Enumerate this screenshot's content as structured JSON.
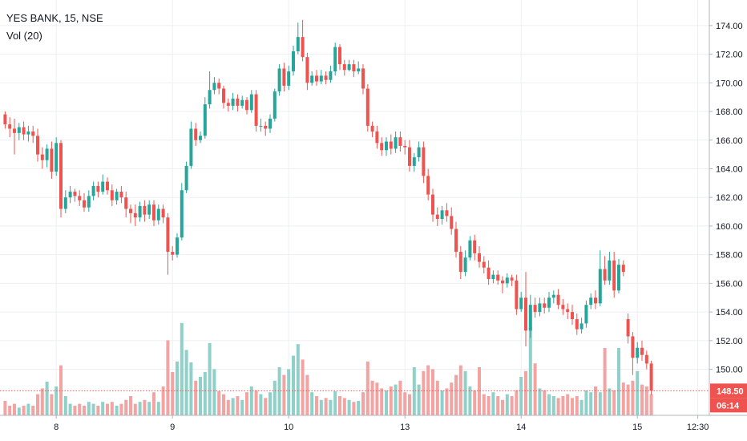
{
  "header": {
    "symbol": "YES BANK, 15, NSE",
    "indicator": "Vol (20)"
  },
  "colors": {
    "up": "#26a69a",
    "down": "#ef5350",
    "up_vol": "#8fd0c8",
    "down_vol": "#f4a3a3",
    "grid": "#edeff3",
    "axis": "#b2b5be",
    "price_line": "#ef5350"
  },
  "price_badge": {
    "price": "148.50",
    "countdown": "06:14",
    "color": "#ef5350"
  },
  "chart_data": {
    "type": "candlestick",
    "y_range": [
      146,
      175
    ],
    "y_ticks": [
      "174.00",
      "172.00",
      "170.00",
      "168.00",
      "166.00",
      "164.00",
      "162.00",
      "160.00",
      "158.00",
      "156.00",
      "154.00",
      "152.00",
      "150.00"
    ],
    "x_labels": [
      {
        "label": "8",
        "bar": 11
      },
      {
        "label": "9",
        "bar": 36
      },
      {
        "label": "10",
        "bar": 61
      },
      {
        "label": "13",
        "bar": 86
      },
      {
        "label": "14",
        "bar": 111
      },
      {
        "label": "15",
        "bar": 136
      },
      {
        "label": "12:30",
        "bar": 149
      }
    ],
    "last_price": 148.5,
    "candles": [
      [
        167.8,
        167.1,
        168.0,
        166.8
      ],
      [
        167.1,
        166.8,
        167.6,
        166.2
      ],
      [
        166.8,
        166.5,
        167.5,
        165.0
      ],
      [
        166.5,
        166.9,
        167.2,
        166.0
      ],
      [
        166.9,
        166.4,
        167.3,
        166.0
      ],
      [
        166.4,
        166.6,
        167.0,
        165.9
      ],
      [
        166.6,
        166.3,
        167.0,
        165.8
      ],
      [
        166.3,
        165.0,
        166.8,
        164.5
      ],
      [
        165.0,
        164.6,
        165.5,
        164.0
      ],
      [
        164.6,
        165.4,
        165.7,
        164.1
      ],
      [
        165.4,
        163.8,
        165.9,
        163.3
      ],
      [
        163.8,
        165.8,
        166.2,
        163.5
      ],
      [
        165.8,
        161.2,
        166.0,
        160.6
      ],
      [
        161.2,
        162.0,
        162.5,
        160.9
      ],
      [
        162.0,
        162.4,
        162.8,
        161.6
      ],
      [
        162.4,
        162.1,
        162.6,
        161.7
      ],
      [
        162.1,
        161.8,
        162.5,
        161.4
      ],
      [
        161.8,
        161.3,
        162.3,
        161.0
      ],
      [
        161.3,
        162.1,
        162.5,
        161.0
      ],
      [
        162.1,
        162.8,
        163.1,
        161.8
      ],
      [
        162.8,
        162.4,
        163.1,
        162.0
      ],
      [
        162.4,
        163.1,
        163.6,
        162.2
      ],
      [
        163.1,
        162.5,
        163.4,
        162.2
      ],
      [
        162.5,
        161.8,
        162.9,
        161.4
      ],
      [
        161.8,
        162.4,
        162.6,
        161.5
      ],
      [
        162.4,
        162.0,
        162.8,
        161.6
      ],
      [
        162.0,
        161.2,
        162.4,
        160.6
      ],
      [
        161.2,
        160.9,
        161.5,
        160.2
      ],
      [
        160.9,
        160.6,
        161.5,
        160.0
      ],
      [
        160.6,
        161.4,
        161.7,
        160.3
      ],
      [
        161.4,
        160.8,
        161.8,
        160.3
      ],
      [
        160.8,
        161.5,
        161.8,
        160.5
      ],
      [
        161.5,
        160.4,
        161.8,
        160.0
      ],
      [
        160.4,
        161.2,
        161.5,
        160.1
      ],
      [
        161.2,
        160.6,
        161.5,
        160.2
      ],
      [
        160.6,
        158.2,
        160.9,
        156.6
      ],
      [
        158.2,
        158.0,
        158.6,
        157.6
      ],
      [
        158.0,
        159.2,
        159.5,
        157.8
      ],
      [
        159.2,
        162.5,
        163.0,
        159.0
      ],
      [
        162.5,
        164.2,
        164.5,
        162.3
      ],
      [
        164.2,
        166.8,
        167.3,
        164.0
      ],
      [
        166.8,
        166.0,
        167.2,
        165.6
      ],
      [
        166.0,
        166.3,
        166.6,
        165.8
      ],
      [
        166.3,
        168.5,
        169.0,
        166.1
      ],
      [
        168.5,
        169.5,
        170.8,
        168.2
      ],
      [
        169.5,
        170.0,
        170.4,
        169.2
      ],
      [
        170.0,
        169.6,
        170.3,
        169.2
      ],
      [
        169.6,
        168.6,
        169.8,
        168.2
      ],
      [
        168.6,
        168.4,
        168.9,
        168.0
      ],
      [
        168.4,
        168.9,
        169.3,
        168.1
      ],
      [
        168.9,
        168.4,
        169.2,
        168.0
      ],
      [
        168.4,
        168.8,
        169.1,
        168.2
      ],
      [
        168.8,
        168.1,
        169.0,
        167.8
      ],
      [
        168.1,
        169.2,
        169.5,
        167.9
      ],
      [
        169.2,
        167.0,
        169.5,
        166.6
      ],
      [
        167.0,
        167.0,
        167.5,
        166.6
      ],
      [
        167.0,
        166.8,
        167.3,
        166.3
      ],
      [
        166.8,
        167.5,
        167.8,
        166.5
      ],
      [
        167.5,
        169.4,
        169.6,
        167.3
      ],
      [
        169.4,
        171.0,
        171.3,
        169.1
      ],
      [
        171.0,
        169.8,
        171.4,
        169.4
      ],
      [
        169.8,
        170.8,
        171.2,
        169.5
      ],
      [
        170.8,
        172.2,
        172.6,
        170.5
      ],
      [
        172.2,
        173.2,
        174.2,
        172.0
      ],
      [
        173.2,
        171.8,
        174.4,
        171.5
      ],
      [
        171.8,
        170.0,
        172.1,
        169.5
      ],
      [
        170.0,
        170.5,
        170.8,
        169.8
      ],
      [
        170.5,
        170.1,
        170.9,
        169.8
      ],
      [
        170.1,
        170.5,
        170.9,
        169.9
      ],
      [
        170.5,
        170.2,
        170.8,
        169.9
      ],
      [
        170.2,
        170.8,
        171.2,
        170.0
      ],
      [
        170.8,
        172.5,
        172.8,
        170.5
      ],
      [
        172.5,
        171.3,
        172.7,
        170.9
      ],
      [
        171.3,
        170.9,
        171.6,
        170.5
      ],
      [
        170.9,
        171.3,
        171.6,
        170.8
      ],
      [
        171.3,
        170.8,
        171.6,
        170.4
      ],
      [
        170.8,
        171.0,
        171.5,
        170.6
      ],
      [
        171.0,
        169.6,
        171.3,
        169.2
      ],
      [
        169.6,
        167.0,
        169.9,
        166.6
      ],
      [
        167.0,
        166.6,
        167.3,
        166.2
      ],
      [
        166.6,
        165.8,
        167.0,
        165.4
      ],
      [
        165.8,
        165.3,
        166.2,
        164.9
      ],
      [
        165.3,
        165.9,
        166.2,
        164.9
      ],
      [
        165.9,
        165.4,
        166.4,
        165.0
      ],
      [
        165.4,
        166.2,
        166.6,
        165.1
      ],
      [
        166.2,
        165.6,
        166.6,
        165.2
      ],
      [
        165.6,
        165.5,
        166.0,
        165.0
      ],
      [
        165.5,
        164.2,
        166.0,
        163.8
      ],
      [
        164.2,
        164.8,
        165.1,
        163.8
      ],
      [
        164.8,
        165.5,
        165.9,
        164.5
      ],
      [
        165.5,
        163.5,
        165.9,
        163.0
      ],
      [
        163.5,
        162.2,
        164.0,
        161.8
      ],
      [
        162.2,
        160.8,
        162.6,
        160.3
      ],
      [
        160.8,
        160.5,
        161.3,
        160.0
      ],
      [
        160.5,
        161.1,
        161.4,
        160.1
      ],
      [
        161.1,
        160.7,
        161.6,
        160.3
      ],
      [
        160.7,
        159.8,
        161.3,
        159.4
      ],
      [
        159.8,
        158.2,
        160.3,
        157.8
      ],
      [
        158.2,
        156.8,
        158.6,
        156.3
      ],
      [
        156.8,
        157.8,
        158.3,
        156.5
      ],
      [
        157.8,
        159.0,
        159.3,
        157.6
      ],
      [
        159.0,
        158.1,
        159.4,
        157.6
      ],
      [
        158.1,
        157.5,
        158.6,
        157.1
      ],
      [
        157.5,
        157.1,
        157.9,
        156.7
      ],
      [
        157.1,
        156.3,
        157.6,
        155.9
      ],
      [
        156.3,
        156.6,
        156.9,
        156.0
      ],
      [
        156.6,
        156.2,
        156.9,
        155.9
      ],
      [
        156.2,
        156.0,
        156.5,
        155.3
      ],
      [
        156.0,
        156.4,
        156.7,
        155.7
      ],
      [
        156.4,
        156.2,
        156.6,
        155.8
      ],
      [
        156.2,
        154.2,
        156.6,
        153.8
      ],
      [
        154.2,
        155.0,
        155.4,
        154.0
      ],
      [
        155.0,
        152.7,
        156.8,
        151.6
      ],
      [
        152.7,
        154.5,
        155.2,
        152.2
      ],
      [
        154.5,
        154.0,
        155.0,
        153.6
      ],
      [
        154.0,
        154.6,
        155.0,
        153.7
      ],
      [
        154.6,
        154.3,
        155.0,
        153.9
      ],
      [
        154.3,
        155.0,
        155.4,
        154.0
      ],
      [
        155.0,
        155.2,
        155.5,
        154.6
      ],
      [
        155.2,
        154.5,
        155.6,
        154.2
      ],
      [
        154.5,
        154.2,
        154.9,
        153.8
      ],
      [
        154.2,
        154.0,
        154.6,
        153.5
      ],
      [
        154.0,
        153.5,
        154.5,
        153.1
      ],
      [
        153.5,
        152.8,
        153.9,
        152.4
      ],
      [
        152.8,
        153.2,
        153.6,
        152.5
      ],
      [
        153.2,
        154.5,
        154.8,
        152.9
      ],
      [
        154.5,
        155.0,
        155.3,
        154.2
      ],
      [
        155.0,
        154.6,
        155.5,
        154.2
      ],
      [
        154.6,
        157.0,
        158.3,
        154.4
      ],
      [
        157.0,
        156.2,
        157.9,
        155.9
      ],
      [
        156.2,
        157.6,
        158.2,
        155.9
      ],
      [
        157.6,
        155.5,
        158.2,
        155.0
      ],
      [
        155.5,
        157.3,
        157.7,
        155.3
      ],
      [
        157.3,
        156.8,
        157.6,
        156.5
      ],
      [
        153.5,
        152.3,
        153.9,
        151.8
      ],
      [
        152.3,
        150.8,
        152.6,
        149.6
      ],
      [
        150.8,
        151.5,
        151.9,
        150.4
      ],
      [
        151.5,
        151.0,
        152.0,
        150.6
      ],
      [
        151.0,
        150.4,
        151.3,
        150.0
      ],
      [
        150.4,
        148.5,
        150.6,
        148.2
      ]
    ],
    "volumes": [
      0.15,
      0.1,
      0.12,
      0.08,
      0.1,
      0.12,
      0.1,
      0.22,
      0.28,
      0.35,
      0.22,
      0.3,
      0.52,
      0.2,
      0.12,
      0.1,
      0.12,
      0.1,
      0.14,
      0.12,
      0.1,
      0.14,
      0.12,
      0.14,
      0.1,
      0.12,
      0.16,
      0.2,
      0.12,
      0.14,
      0.16,
      0.14,
      0.24,
      0.14,
      0.3,
      0.78,
      0.45,
      0.56,
      0.96,
      0.68,
      0.55,
      0.36,
      0.4,
      0.45,
      0.75,
      0.48,
      0.25,
      0.22,
      0.16,
      0.18,
      0.2,
      0.16,
      0.24,
      0.3,
      0.26,
      0.22,
      0.18,
      0.24,
      0.36,
      0.5,
      0.42,
      0.48,
      0.62,
      0.74,
      0.58,
      0.42,
      0.24,
      0.2,
      0.16,
      0.18,
      0.16,
      0.25,
      0.2,
      0.18,
      0.16,
      0.14,
      0.15,
      0.24,
      0.56,
      0.36,
      0.34,
      0.28,
      0.26,
      0.3,
      0.32,
      0.36,
      0.24,
      0.22,
      0.5,
      0.32,
      0.46,
      0.52,
      0.48,
      0.36,
      0.26,
      0.28,
      0.34,
      0.42,
      0.52,
      0.46,
      0.3,
      0.26,
      0.5,
      0.22,
      0.2,
      0.24,
      0.2,
      0.16,
      0.22,
      0.2,
      0.26,
      0.4,
      0.46,
      0.92,
      0.54,
      0.28,
      0.26,
      0.22,
      0.2,
      0.18,
      0.2,
      0.22,
      0.18,
      0.2,
      0.16,
      0.26,
      0.24,
      0.3,
      0.24,
      0.7,
      0.28,
      0.26,
      0.7,
      0.34,
      0.32,
      0.36,
      0.46,
      0.32,
      0.3,
      0.22
    ]
  }
}
